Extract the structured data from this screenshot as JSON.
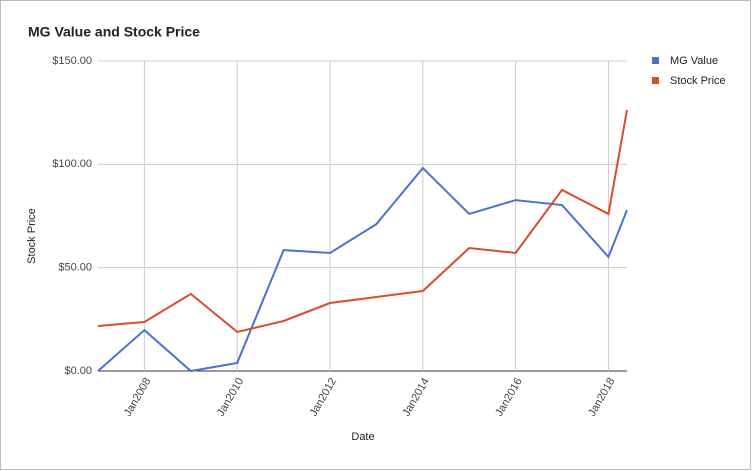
{
  "chart_data": {
    "type": "line",
    "title": "MG Value and Stock Price",
    "x_label": "Date",
    "y_label": "Stock Price",
    "x": [
      2007,
      2008,
      2009,
      2010,
      2011,
      2012,
      2013,
      2014,
      2015,
      2016,
      2017,
      2018,
      2018.4
    ],
    "series": [
      {
        "name": "MG Value",
        "color": "#4a72d0",
        "values": [
          0,
          19.8,
          0,
          3.9,
          58.5,
          57.1,
          71.1,
          98.2,
          76,
          82.7,
          80.3,
          55.2,
          77.9
        ]
      },
      {
        "name": "Stock Price",
        "color": "#dc4b2a",
        "values": [
          21.8,
          23.7,
          37.3,
          18.9,
          24.2,
          32.9,
          35.8,
          38.7,
          59.5,
          57.1,
          87.6,
          76,
          126.3
        ]
      }
    ],
    "xlim": [
      2007,
      2018.4
    ],
    "xticks": [
      {
        "value": 2008,
        "label": "Jan2008"
      },
      {
        "value": 2010,
        "label": "Jan2010"
      },
      {
        "value": 2012,
        "label": "Jan2012"
      },
      {
        "value": 2014,
        "label": "Jan2014"
      },
      {
        "value": 2016,
        "label": "Jan2016"
      },
      {
        "value": 2018,
        "label": "Jan2018"
      }
    ],
    "ylim": [
      0,
      150
    ],
    "yticks": [
      {
        "value": 0,
        "label": "$0.00"
      },
      {
        "value": 50,
        "label": "$50.00"
      },
      {
        "value": 100,
        "label": "$100.00"
      },
      {
        "value": 150,
        "label": "$150.00"
      }
    ],
    "grid": true,
    "legend": "right"
  }
}
